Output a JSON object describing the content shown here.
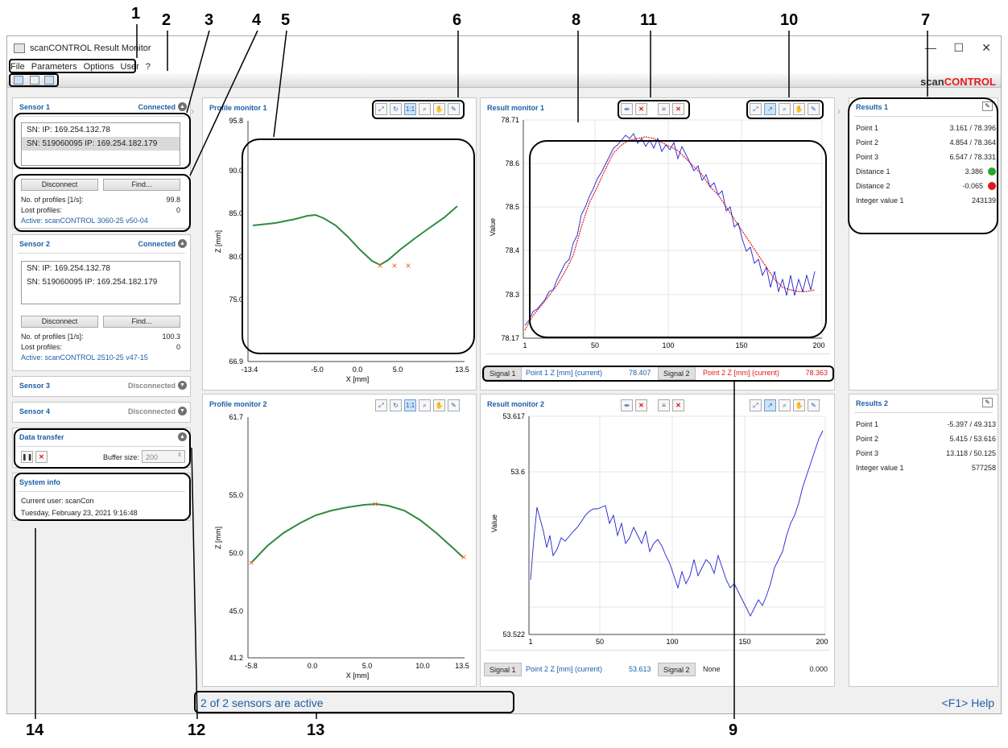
{
  "callouts": [
    "1",
    "2",
    "3",
    "4",
    "5",
    "6",
    "8",
    "11",
    "10",
    "7",
    "14",
    "12",
    "13",
    "9"
  ],
  "window": {
    "title": "scanCONTROL Result Monitor",
    "brand_a": "scan",
    "brand_b": "CONTROL",
    "min": "—",
    "max": "☐",
    "close": "✕"
  },
  "menu": [
    "File",
    "Parameters",
    "Options",
    "User",
    "?"
  ],
  "sensors": [
    {
      "title": "Sensor 1",
      "status": "Connected",
      "ips": [
        "SN:   IP: 169.254.132.78",
        "SN: 519060095   IP: 169.254.182.179"
      ],
      "disconnect": "Disconnect",
      "find": "Find...",
      "profiles_label": "No. of profiles [1/s]:",
      "profiles_value": "99.8",
      "lost_label": "Lost profiles:",
      "lost_value": "0",
      "active": "Active: scanCONTROL 3060-25 v50-04"
    },
    {
      "title": "Sensor 2",
      "status": "Connected",
      "ips": [
        "SN:   IP: 169.254.132.78",
        "SN: 519060095   IP: 169.254.182.179"
      ],
      "disconnect": "Disconnect",
      "find": "Find...",
      "profiles_label": "No. of profiles [1/s]:",
      "profiles_value": "100.3",
      "lost_label": "Lost profiles:",
      "lost_value": "0",
      "active": "Active: scanCONTROL 2510-25 v47-15"
    },
    {
      "title": "Sensor 3",
      "status": "Disconnected"
    },
    {
      "title": "Sensor 4",
      "status": "Disconnected"
    }
  ],
  "data_transfer": {
    "title": "Data transfer",
    "buffer_label": "Buffer size:",
    "buffer_value": "200"
  },
  "system_info": {
    "title": "System info",
    "user": "Current user: scanCon",
    "date": "Tuesday, February 23, 2021 9:16:48"
  },
  "profile_monitor_1": {
    "title": "Profile monitor 1",
    "xlabel": "X [mm]",
    "ylabel": "Z [mm]",
    "yticks": [
      "95.8",
      "90.0",
      "85.0",
      "80.0",
      "75.0",
      "66.9"
    ],
    "xticks": [
      "-13.4",
      "-5.0",
      "0.0",
      "5.0",
      "13.5"
    ]
  },
  "profile_monitor_2": {
    "title": "Profile monitor 2",
    "xlabel": "X [mm]",
    "ylabel": "Z [mm]",
    "yticks": [
      "61.7",
      "55.0",
      "50.0",
      "45.0",
      "41.2"
    ],
    "xticks": [
      "-5.8",
      "0.0",
      "5.0",
      "10.0",
      "13.5"
    ]
  },
  "result_monitor_1": {
    "title": "Result monitor 1",
    "ylabel": "Value",
    "yticks": [
      "78.71",
      "78.6",
      "78.5",
      "78.4",
      "78.3",
      "78.17"
    ],
    "xticks": [
      "1",
      "50",
      "100",
      "150",
      "200"
    ],
    "signal1_tab": "Signal 1",
    "signal1_name": "Point 1 Z [mm] (current)",
    "signal1_value": "78.407",
    "signal2_tab": "Signal 2",
    "signal2_name": "Point 2 Z [mm] (current)",
    "signal2_value": "78.363"
  },
  "result_monitor_2": {
    "title": "Result monitor 2",
    "ylabel": "Value",
    "yticks": [
      "53.617",
      "53.6",
      "53.522"
    ],
    "xticks": [
      "1",
      "50",
      "100",
      "150",
      "200"
    ],
    "signal1_tab": "Signal 1",
    "signal1_name": "Point 2 Z [mm] (current)",
    "signal1_value": "53.613",
    "signal2_tab": "Signal 2",
    "signal2_name": "None",
    "signal2_value": "0.000"
  },
  "results_1": {
    "title": "Results 1",
    "rows": [
      {
        "label": "Point 1",
        "value": "3.161 / 78.396"
      },
      {
        "label": "Point 2",
        "value": "4.854 / 78.364"
      },
      {
        "label": "Point 3",
        "value": "6.547 / 78.331"
      },
      {
        "label": "Distance 1",
        "value": "3.386"
      },
      {
        "label": "Distance 2",
        "value": "-0.065"
      },
      {
        "label": "Integer value 1",
        "value": "243139"
      }
    ]
  },
  "results_2": {
    "title": "Results 2",
    "rows": [
      {
        "label": "Point 1",
        "value": "-5.397 / 49.313"
      },
      {
        "label": "Point 2",
        "value": "5.415 / 53.616"
      },
      {
        "label": "Point 3",
        "value": "13.118 / 50.125"
      },
      {
        "label": "Integer value 1",
        "value": "577258"
      }
    ]
  },
  "status": {
    "text": "2 of 2 sensors are active",
    "help": "<F1> Help"
  },
  "colors": {
    "accent": "#1c5fa8",
    "profile": "#2e8b3e",
    "marker": "#f06a1c",
    "signal1": "#2222cc",
    "signal2": "#e01818",
    "ok": "#2aa52a",
    "bad": "#e01818"
  }
}
